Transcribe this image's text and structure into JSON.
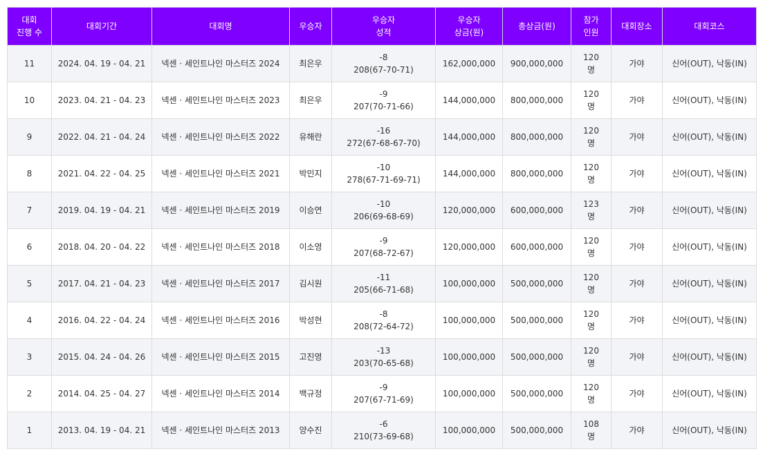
{
  "colors": {
    "header_bg": "#7f00ff",
    "header_text": "#ffffff",
    "row_alt_bg": "#f3f4f8",
    "border": "#dcdcdc"
  },
  "table": {
    "headers": [
      "대회\n진행 수",
      "대회기간",
      "대회명",
      "우승자",
      "우승자\n성적",
      "우승자\n상금(원)",
      "총상금(원)",
      "참가\n인원",
      "대회장소",
      "대회코스"
    ],
    "rows": [
      [
        "11",
        "2024. 04. 19 - 04. 21",
        "넥센 · 세인트나인 마스터즈 2024",
        "최은우",
        "-8\n208(67-70-71)",
        "162,000,000",
        "900,000,000",
        "120\n명",
        "가야",
        "신어(OUT), 낙동(IN)"
      ],
      [
        "10",
        "2023. 04. 21 - 04. 23",
        "넥센 · 세인트나인 마스터즈 2023",
        "최은우",
        "-9\n207(70-71-66)",
        "144,000,000",
        "800,000,000",
        "120\n명",
        "가야",
        "신어(OUT), 낙동(IN)"
      ],
      [
        "9",
        "2022. 04. 21 - 04. 24",
        "넥센 · 세인트나인 마스터즈 2022",
        "유해란",
        "-16\n272(67-68-67-70)",
        "144,000,000",
        "800,000,000",
        "120\n명",
        "가야",
        "신어(OUT), 낙동(IN)"
      ],
      [
        "8",
        "2021. 04. 22 - 04. 25",
        "넥센 · 세인트나인 마스터즈 2021",
        "박민지",
        "-10\n278(67-71-69-71)",
        "144,000,000",
        "800,000,000",
        "120\n명",
        "가야",
        "신어(OUT), 낙동(IN)"
      ],
      [
        "7",
        "2019. 04. 19 - 04. 21",
        "넥센 · 세인트나인 마스터즈 2019",
        "이승연",
        "-10\n206(69-68-69)",
        "120,000,000",
        "600,000,000",
        "123\n명",
        "가야",
        "신어(OUT), 낙동(IN)"
      ],
      [
        "6",
        "2018. 04. 20 - 04. 22",
        "넥센 · 세인트나인 마스터즈 2018",
        "이소영",
        "-9\n207(68-72-67)",
        "120,000,000",
        "600,000,000",
        "120\n명",
        "가야",
        "신어(OUT), 낙동(IN)"
      ],
      [
        "5",
        "2017. 04. 21 - 04. 23",
        "넥센 · 세인트나인 마스터즈 2017",
        "김시원",
        "-11\n205(66-71-68)",
        "100,000,000",
        "500,000,000",
        "120\n명",
        "가야",
        "신어(OUT), 낙동(IN)"
      ],
      [
        "4",
        "2016. 04. 22 - 04. 24",
        "넥센 · 세인트나인 마스터즈 2016",
        "박성현",
        "-8\n208(72-64-72)",
        "100,000,000",
        "500,000,000",
        "120\n명",
        "가야",
        "신어(OUT), 낙동(IN)"
      ],
      [
        "3",
        "2015. 04. 24 - 04. 26",
        "넥센 · 세인트나인 마스터즈 2015",
        "고진영",
        "-13\n203(70-65-68)",
        "100,000,000",
        "500,000,000",
        "120\n명",
        "가야",
        "신어(OUT), 낙동(IN)"
      ],
      [
        "2",
        "2014. 04. 25 - 04. 27",
        "넥센 · 세인트나인 마스터즈 2014",
        "백규정",
        "-9\n207(67-71-69)",
        "100,000,000",
        "500,000,000",
        "120\n명",
        "가야",
        "신어(OUT), 낙동(IN)"
      ],
      [
        "1",
        "2013. 04. 19 - 04. 21",
        "넥센 · 세인트나인 마스터즈 2013",
        "양수진",
        "-6\n210(73-69-68)",
        "100,000,000",
        "500,000,000",
        "108\n명",
        "가야",
        "신어(OUT), 낙동(IN)"
      ]
    ]
  }
}
